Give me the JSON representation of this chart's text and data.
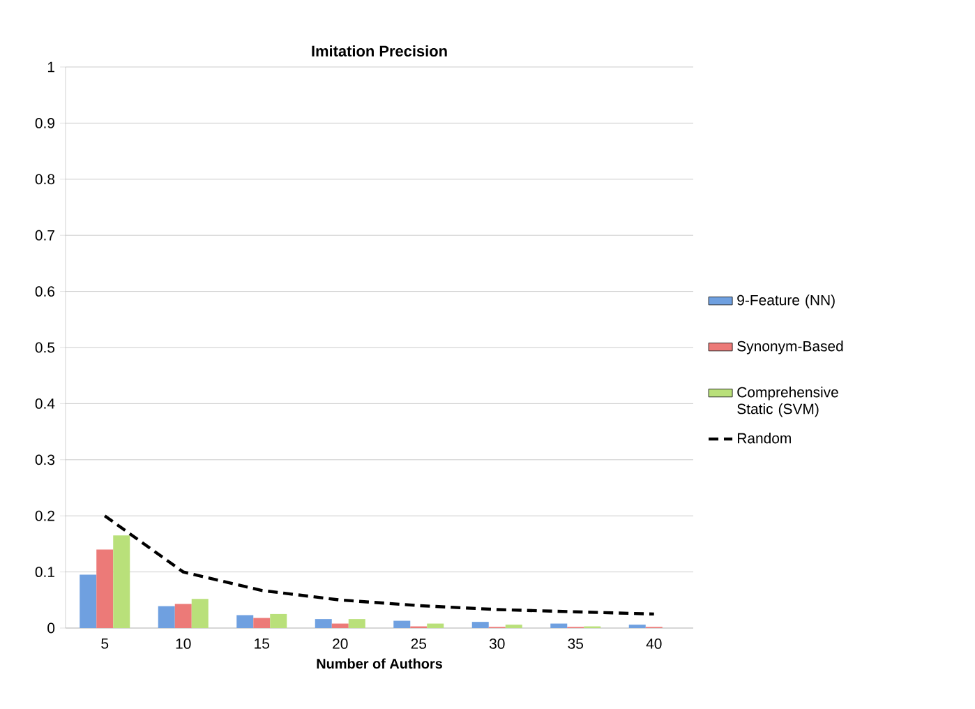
{
  "chart_data": {
    "type": "bar",
    "title": "Imitation Precision",
    "xlabel": "Number of Authors",
    "categories": [
      "5",
      "10",
      "15",
      "20",
      "25",
      "30",
      "35",
      "40"
    ],
    "series": [
      {
        "name": "9-Feature (NN)",
        "color": "#6fa0e0",
        "values": [
          0.095,
          0.039,
          0.023,
          0.016,
          0.013,
          0.011,
          0.008,
          0.006
        ]
      },
      {
        "name": "Synonym-Based",
        "color": "#ec7a78",
        "values": [
          0.14,
          0.043,
          0.018,
          0.008,
          0.003,
          0.002,
          0.002,
          0.002
        ]
      },
      {
        "name": "Comprehensive Static (SVM)",
        "color": "#b9e07a",
        "values": [
          0.165,
          0.052,
          0.025,
          0.016,
          0.008,
          0.006,
          0.003,
          0
        ]
      },
      {
        "name": "Random",
        "type": "line",
        "color": "#000000",
        "line_style": "dashed",
        "values": [
          0.2,
          0.1,
          0.067,
          0.05,
          0.04,
          0.033,
          0.029,
          0.025
        ]
      }
    ],
    "ylim": [
      0,
      1
    ],
    "yticks": [
      0,
      0.1,
      0.2,
      0.3,
      0.4,
      0.5,
      0.6,
      0.7,
      0.8,
      0.9,
      1
    ],
    "grid": "y",
    "legend": "right",
    "marker": "none"
  }
}
